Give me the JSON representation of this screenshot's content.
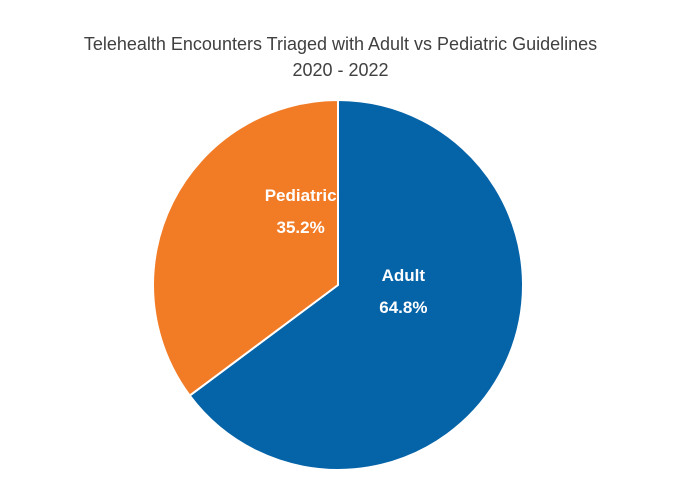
{
  "chart_data": {
    "type": "pie",
    "title": "Telehealth Encounters Triaged with Adult vs Pediatric Guidelines",
    "subtitle": "2020 - 2022",
    "slices": [
      {
        "label": "Adult",
        "value": 64.8,
        "value_label": "64.8%",
        "color": "#0563A8"
      },
      {
        "label": "Pediatric",
        "value": 35.2,
        "value_label": "35.2%",
        "color": "#F27B25"
      }
    ],
    "start_angle": "12 o'clock",
    "direction": "clockwise",
    "slice_border_color": "#ffffff",
    "legend": "none"
  }
}
